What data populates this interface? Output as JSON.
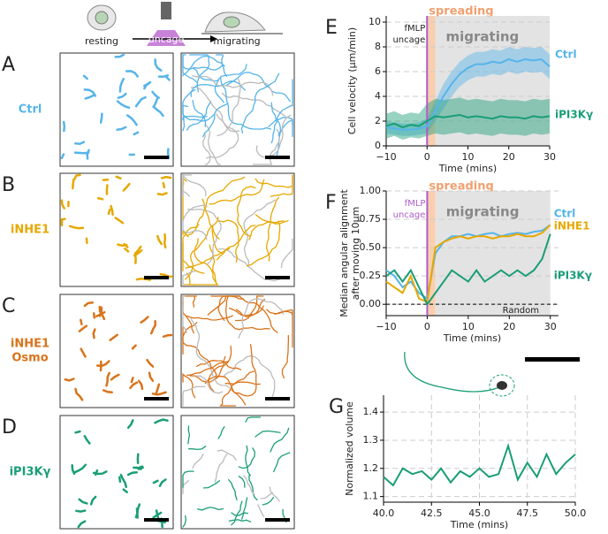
{
  "figure": {
    "schematic": {
      "resting": "resting",
      "uncage": "uncage",
      "migrating": "migrating"
    },
    "panels": [
      {
        "letter": "A",
        "label": [
          "Ctrl"
        ],
        "color": "#56b4e9"
      },
      {
        "letter": "B",
        "label": [
          "iNHE1"
        ],
        "color": "#e6a800"
      },
      {
        "letter": "C",
        "label": [
          "iNHE1",
          "Osmo"
        ],
        "color": "#d9731a"
      },
      {
        "letter": "D",
        "label": [
          "iPI3Kγ"
        ],
        "color": "#1a9e77"
      }
    ]
  },
  "chart_data": [
    {
      "type": "line",
      "letter": "E",
      "xlabel": "Time (mins)",
      "ylabel": [
        "Cell velocity (μm/min)"
      ],
      "x": [
        -10,
        -8,
        -6,
        -4,
        -2,
        0,
        2,
        4,
        6,
        8,
        10,
        12,
        14,
        16,
        18,
        20,
        22,
        24,
        26,
        28,
        30
      ],
      "xlim": [
        -10,
        30
      ],
      "xticks": [
        {
          "value": -10,
          "label": "−10"
        },
        0,
        10,
        20,
        30
      ],
      "ylim": [
        0,
        10.5
      ],
      "yticks": [
        0,
        2,
        4,
        6,
        8,
        10
      ],
      "grid": true,
      "regions": [
        {
          "label": "spreading",
          "start": 0,
          "end": 2,
          "color": "#f7c39b"
        },
        {
          "label": "migrating",
          "start": 2,
          "end": 30,
          "color": "#dcdcdc"
        }
      ],
      "vline": {
        "x": 0,
        "label": [
          "fMLP",
          "uncage"
        ],
        "color": "#b05cc8"
      },
      "series": [
        {
          "name": "Ctrl",
          "color": "#56b4e9",
          "values": [
            1.5,
            1.4,
            1.3,
            1.3,
            1.4,
            1.6,
            2.8,
            4,
            5,
            5.8,
            6.3,
            6.6,
            6.6,
            6.8,
            6.7,
            7,
            6.8,
            7,
            6.9,
            7,
            6.4
          ],
          "lower": [
            1,
            0.9,
            0.8,
            0.8,
            0.9,
            1,
            2,
            3,
            4,
            4.8,
            5.3,
            5.6,
            5.6,
            5.8,
            5.7,
            6,
            5.8,
            6,
            5.9,
            6,
            5.4
          ],
          "upper": [
            2,
            1.9,
            1.8,
            1.8,
            1.9,
            2.2,
            3.6,
            5,
            6,
            6.8,
            7.3,
            7.6,
            7.6,
            7.8,
            7.7,
            8,
            7.8,
            8,
            7.9,
            8,
            7.4
          ]
        },
        {
          "name": "iPI3Kγ",
          "color": "#1a9e77",
          "values": [
            1.6,
            1.8,
            1.5,
            1.7,
            1.6,
            2,
            2.4,
            2.3,
            2.4,
            2.5,
            2.3,
            2.4,
            2.3,
            2.2,
            2.4,
            2.3,
            2.3,
            2.2,
            2.4,
            2.3,
            2.4
          ],
          "lower": [
            0.6,
            0.8,
            0.5,
            0.7,
            0.6,
            0.8,
            1,
            0.9,
            1,
            1.1,
            0.9,
            1,
            0.9,
            0.8,
            1,
            0.9,
            0.9,
            0.8,
            1,
            0.9,
            1
          ],
          "upper": [
            2.6,
            2.8,
            2.5,
            2.7,
            2.6,
            3.4,
            3.8,
            3.7,
            3.8,
            3.9,
            3.7,
            3.8,
            3.7,
            3.6,
            3.8,
            3.7,
            3.7,
            3.6,
            3.8,
            3.7,
            3.8
          ]
        }
      ]
    },
    {
      "type": "line",
      "letter": "F",
      "xlabel": "Time (mins)",
      "ylabel": [
        "Median angular alignment",
        "after moving 10μm"
      ],
      "x": [
        -10,
        -8,
        -6,
        -4,
        -2,
        0,
        2,
        4,
        6,
        8,
        10,
        12,
        14,
        16,
        18,
        20,
        22,
        24,
        26,
        28,
        30
      ],
      "xlim": [
        -10,
        32
      ],
      "xticks": [
        {
          "value": -10,
          "label": "−10"
        },
        0,
        10,
        20,
        30
      ],
      "ylim": [
        -0.1,
        1.0
      ],
      "yticks": [
        {
          "value": 0,
          "label": "0.00"
        },
        {
          "value": 0.25,
          "label": "0.25"
        },
        {
          "value": 0.5,
          "label": "0.50"
        },
        {
          "value": 0.75,
          "label": "0.75"
        },
        {
          "value": 1,
          "label": "1.00"
        }
      ],
      "grid": true,
      "regions": [
        {
          "label": "spreading",
          "start": 0,
          "end": 2,
          "color": "#f7c39b"
        },
        {
          "label": "migrating",
          "start": 2,
          "end": 30,
          "color": "#dcdcdc"
        }
      ],
      "vline": {
        "x": 0,
        "label": [
          "fMLP",
          "uncage"
        ],
        "color": "#b05cc8"
      },
      "hline": {
        "y": 0,
        "label": "Random"
      },
      "series": [
        {
          "name": "Ctrl",
          "color": "#56b4e9",
          "values": [
            0.3,
            0.25,
            0.15,
            0.2,
            0.1,
            0.05,
            0.45,
            0.55,
            0.6,
            0.6,
            0.62,
            0.6,
            0.62,
            0.63,
            0.6,
            0.62,
            0.63,
            0.62,
            0.64,
            0.65,
            0.7
          ]
        },
        {
          "name": "iNHE1",
          "color": "#e6a800",
          "values": [
            0.2,
            0.15,
            0.1,
            0.25,
            0.05,
            0.02,
            0.5,
            0.55,
            0.58,
            0.6,
            0.58,
            0.6,
            0.6,
            0.58,
            0.6,
            0.6,
            0.62,
            0.6,
            0.6,
            0.63,
            0.7
          ]
        },
        {
          "name": "iPI3Kγ",
          "color": "#1a9e77",
          "values": [
            0.25,
            0.3,
            0.2,
            0.3,
            0.15,
            0,
            0.1,
            0.2,
            0.3,
            0.25,
            0.2,
            0.3,
            0.2,
            0.25,
            0.3,
            0.25,
            0.3,
            0.25,
            0.3,
            0.4,
            0.62
          ]
        }
      ]
    },
    {
      "type": "line",
      "letter": "G",
      "xlabel": "Time (mins)",
      "ylabel": [
        "Normalized volume"
      ],
      "x": [
        40,
        40.5,
        41,
        41.5,
        42,
        42.5,
        43,
        43.5,
        44,
        44.5,
        45,
        45.5,
        46,
        46.5,
        47,
        47.5,
        48,
        48.5,
        49,
        49.5,
        50
      ],
      "xlim": [
        40,
        50
      ],
      "xticks": [
        {
          "value": 40,
          "label": "40.0"
        },
        42.5,
        {
          "value": 45,
          "label": "45.0"
        },
        47.5,
        {
          "value": 50,
          "label": "50.0"
        }
      ],
      "ylim": [
        1.08,
        1.46
      ],
      "yticks": [
        1.1,
        1.2,
        1.3,
        1.4
      ],
      "grid": true,
      "xgrid": true,
      "series": [
        {
          "color": "#1a9e77",
          "values": [
            1.17,
            1.14,
            1.2,
            1.18,
            1.19,
            1.16,
            1.2,
            1.15,
            1.19,
            1.17,
            1.2,
            1.17,
            1.18,
            1.28,
            1.16,
            1.22,
            1.17,
            1.25,
            1.18,
            1.22,
            1.25
          ]
        }
      ]
    }
  ]
}
